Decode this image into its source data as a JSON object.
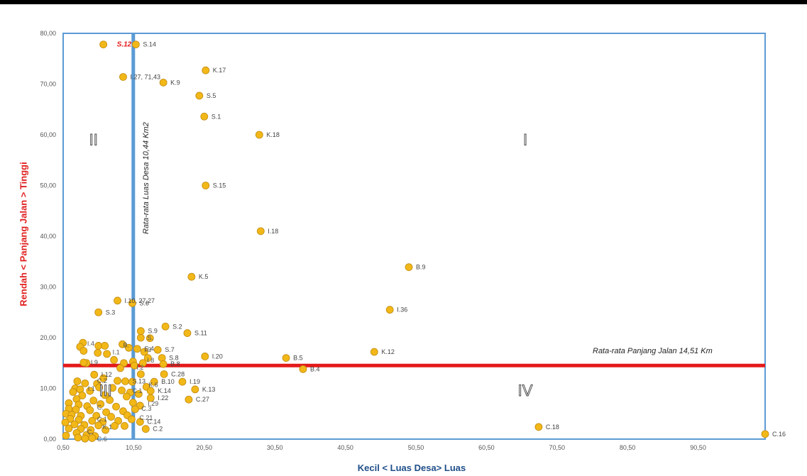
{
  "chart_data": {
    "type": "scatter",
    "xlabel": "Kecil < Luas Desa> Luas",
    "ylabel": "Rendah < Panjang Jalan > Tinggi",
    "xlim": [
      0.5,
      100
    ],
    "ylim": [
      0,
      80
    ],
    "x_ticks": [
      "0,50",
      "10,50",
      "20,50",
      "30,50",
      "40,50",
      "50,50",
      "60,50",
      "70,50",
      "80,50",
      "90,50"
    ],
    "y_ticks": [
      "0,00",
      "10,00",
      "20,00",
      "30,00",
      "40,00",
      "50,00",
      "60,00",
      "70,00",
      "80,00"
    ],
    "grid": false,
    "mean_x": 10.44,
    "mean_y": 14.51,
    "mean_x_label": "Rata-rata Luas Desa 10,44 Km2",
    "mean_y_label": "Rata-rata Panjang Jalan 14,51 Km",
    "quadrant_labels": [
      {
        "label": "I",
        "x": 66,
        "y": 58
      },
      {
        "label": "II",
        "x": 4.8,
        "y": 58
      },
      {
        "label": "III",
        "x": 6.5,
        "y": 8.5
      },
      {
        "label": "IV",
        "x": 66,
        "y": 8.5
      }
    ],
    "colors": {
      "point": "#f2b818",
      "point_stroke": "#c08a10",
      "mean_x_line": "#5b9bd5",
      "mean_y_line": "#e41a1a",
      "frame": "#5b9bd5",
      "highlight_label": "#e41a1a"
    },
    "labeled_points": [
      {
        "label": "S.12",
        "x": 6.2,
        "y": 77.8,
        "highlight": true
      },
      {
        "label": "S.14",
        "x": 10.8,
        "y": 77.8
      },
      {
        "label": "I.27, 71,43",
        "x": 9.0,
        "y": 71.4
      },
      {
        "label": "K.9",
        "x": 14.7,
        "y": 70.3
      },
      {
        "label": "K.17",
        "x": 20.7,
        "y": 72.7
      },
      {
        "label": "S.5",
        "x": 19.8,
        "y": 67.7
      },
      {
        "label": "S.1",
        "x": 20.5,
        "y": 63.6
      },
      {
        "label": "K.18",
        "x": 28.3,
        "y": 60.0
      },
      {
        "label": "S.15",
        "x": 20.7,
        "y": 50.0
      },
      {
        "label": "I.18",
        "x": 28.5,
        "y": 41.0
      },
      {
        "label": "K.5",
        "x": 18.7,
        "y": 32.0
      },
      {
        "label": "B.9",
        "x": 49.5,
        "y": 33.9
      },
      {
        "label": "I.36",
        "x": 46.8,
        "y": 25.5
      },
      {
        "label": "S.3",
        "x": 5.5,
        "y": 25.0
      },
      {
        "label": "I.10, 27,27",
        "x": 8.2,
        "y": 27.3
      },
      {
        "label": "S.6",
        "x": 10.3,
        "y": 26.8
      },
      {
        "label": "S.2",
        "x": 15.0,
        "y": 22.2
      },
      {
        "label": "S.11",
        "x": 18.1,
        "y": 20.9
      },
      {
        "label": "S.9",
        "x": 11.5,
        "y": 21.3
      },
      {
        "label": "K.12",
        "x": 44.6,
        "y": 17.2
      },
      {
        "label": "I.20",
        "x": 20.6,
        "y": 16.3
      },
      {
        "label": "B.5",
        "x": 32.1,
        "y": 16.0
      },
      {
        "label": "B.4",
        "x": 34.5,
        "y": 13.8
      },
      {
        "label": "S.7",
        "x": 13.9,
        "y": 17.6
      },
      {
        "label": "S.8",
        "x": 14.5,
        "y": 16.0
      },
      {
        "label": "B.8",
        "x": 14.7,
        "y": 14.8
      },
      {
        "label": "C.28",
        "x": 14.8,
        "y": 12.8
      },
      {
        "label": "I.12",
        "x": 4.9,
        "y": 12.7
      },
      {
        "label": "B.10",
        "x": 13.4,
        "y": 11.3
      },
      {
        "label": "I.19",
        "x": 17.4,
        "y": 11.3
      },
      {
        "label": "K.13",
        "x": 19.2,
        "y": 9.8
      },
      {
        "label": "K.14",
        "x": 12.9,
        "y": 9.5
      },
      {
        "label": "I.22",
        "x": 12.9,
        "y": 8.1
      },
      {
        "label": "C.27",
        "x": 18.3,
        "y": 7.8
      },
      {
        "label": "C.2",
        "x": 12.2,
        "y": 2.0
      },
      {
        "label": "C.14",
        "x": 11.4,
        "y": 3.4
      },
      {
        "label": "C.18",
        "x": 67.9,
        "y": 2.4
      },
      {
        "label": "C.16",
        "x": 100.0,
        "y": 1.0
      },
      {
        "label": "I.9",
        "x": 3.4,
        "y": 15.1
      },
      {
        "label": "S.4",
        "x": 11.0,
        "y": 17.8
      },
      {
        "label": "S.13",
        "x": 9.3,
        "y": 11.4
      }
    ],
    "unlabeled_points": [
      {
        "x": 3.3,
        "y": 19.0
      },
      {
        "x": 5.5,
        "y": 18.4
      },
      {
        "x": 2.9,
        "y": 18.2
      },
      {
        "x": 6.4,
        "y": 18.4
      },
      {
        "x": 8.9,
        "y": 18.7
      },
      {
        "x": 9.8,
        "y": 18.0
      },
      {
        "x": 11.5,
        "y": 20.0
      },
      {
        "x": 12.8,
        "y": 19.9
      },
      {
        "x": 3.4,
        "y": 17.4
      },
      {
        "x": 5.4,
        "y": 17.0
      },
      {
        "x": 6.7,
        "y": 16.8
      },
      {
        "x": 12.0,
        "y": 17.2
      },
      {
        "x": 12.5,
        "y": 16.0
      },
      {
        "x": 7.7,
        "y": 15.6
      },
      {
        "x": 9.1,
        "y": 15.0
      },
      {
        "x": 10.4,
        "y": 15.3
      },
      {
        "x": 11.8,
        "y": 15.0
      },
      {
        "x": 3.8,
        "y": 15.0
      },
      {
        "x": 8.6,
        "y": 14.0
      },
      {
        "x": 10.6,
        "y": 14.5
      },
      {
        "x": 11.5,
        "y": 12.8
      },
      {
        "x": 6.2,
        "y": 12.0
      },
      {
        "x": 8.2,
        "y": 11.5
      },
      {
        "x": 10.3,
        "y": 11.3
      },
      {
        "x": 2.5,
        "y": 11.4
      },
      {
        "x": 3.6,
        "y": 11.0
      },
      {
        "x": 5.3,
        "y": 10.9
      },
      {
        "x": 2.2,
        "y": 10.0
      },
      {
        "x": 2.9,
        "y": 9.8
      },
      {
        "x": 4.3,
        "y": 9.5
      },
      {
        "x": 5.6,
        "y": 10.2
      },
      {
        "x": 7.5,
        "y": 10.1
      },
      {
        "x": 8.8,
        "y": 9.6
      },
      {
        "x": 10.0,
        "y": 9.2
      },
      {
        "x": 12.3,
        "y": 10.3
      },
      {
        "x": 1.9,
        "y": 9.3
      },
      {
        "x": 3.2,
        "y": 8.6
      },
      {
        "x": 6.4,
        "y": 8.7
      },
      {
        "x": 9.5,
        "y": 8.4
      },
      {
        "x": 11.2,
        "y": 8.9
      },
      {
        "x": 2.4,
        "y": 7.9
      },
      {
        "x": 4.8,
        "y": 7.6
      },
      {
        "x": 7.1,
        "y": 7.7
      },
      {
        "x": 10.4,
        "y": 7.2
      },
      {
        "x": 1.3,
        "y": 7.1
      },
      {
        "x": 2.7,
        "y": 6.8
      },
      {
        "x": 3.9,
        "y": 6.5
      },
      {
        "x": 5.8,
        "y": 6.9
      },
      {
        "x": 8.0,
        "y": 6.4
      },
      {
        "x": 11.4,
        "y": 6.6
      },
      {
        "x": 1.3,
        "y": 6.0
      },
      {
        "x": 2.3,
        "y": 5.8
      },
      {
        "x": 4.3,
        "y": 5.7
      },
      {
        "x": 6.6,
        "y": 5.3
      },
      {
        "x": 9.0,
        "y": 5.5
      },
      {
        "x": 10.7,
        "y": 5.9
      },
      {
        "x": 0.9,
        "y": 5.0
      },
      {
        "x": 1.7,
        "y": 4.8
      },
      {
        "x": 3.0,
        "y": 4.6
      },
      {
        "x": 5.2,
        "y": 4.6
      },
      {
        "x": 7.3,
        "y": 4.4
      },
      {
        "x": 9.6,
        "y": 4.7
      },
      {
        "x": 1.5,
        "y": 4.0
      },
      {
        "x": 2.7,
        "y": 3.8
      },
      {
        "x": 4.6,
        "y": 3.6
      },
      {
        "x": 6.1,
        "y": 3.4
      },
      {
        "x": 8.3,
        "y": 3.6
      },
      {
        "x": 10.2,
        "y": 3.9
      },
      {
        "x": 0.8,
        "y": 3.3
      },
      {
        "x": 2.1,
        "y": 2.9
      },
      {
        "x": 3.5,
        "y": 2.8
      },
      {
        "x": 5.5,
        "y": 2.7
      },
      {
        "x": 7.8,
        "y": 2.6
      },
      {
        "x": 9.2,
        "y": 2.6
      },
      {
        "x": 1.3,
        "y": 2.1
      },
      {
        "x": 3.0,
        "y": 2.0
      },
      {
        "x": 4.4,
        "y": 1.8
      },
      {
        "x": 6.5,
        "y": 1.8
      },
      {
        "x": 2.4,
        "y": 1.2
      },
      {
        "x": 3.8,
        "y": 0.8
      },
      {
        "x": 5.0,
        "y": 0.6
      },
      {
        "x": 0.9,
        "y": 0.7
      },
      {
        "x": 2.6,
        "y": 0.3
      },
      {
        "x": 3.6,
        "y": 0.1
      },
      {
        "x": 4.6,
        "y": 0.2
      }
    ],
    "cluster_labels": [
      {
        "label": "I.4",
        "x": 3.6,
        "y": 18.8
      },
      {
        "label": "B.",
        "x": 8.7,
        "y": 18.5
      },
      {
        "label": "S.",
        "x": 12.1,
        "y": 19.9
      },
      {
        "label": "I.3",
        "x": 11.7,
        "y": 17.6
      },
      {
        "label": "I.1",
        "x": 7.2,
        "y": 17.1
      },
      {
        "label": "I.8",
        "x": 12.1,
        "y": 15.5
      },
      {
        "label": "I.2",
        "x": 10.6,
        "y": 14.1
      },
      {
        "label": "C.2",
        "x": 5.0,
        "y": 11.5
      },
      {
        "label": "K.6",
        "x": 12.3,
        "y": 10.7
      },
      {
        "label": "I.1",
        "x": 3.7,
        "y": 9.9
      },
      {
        "label": "C.1",
        "x": 10.0,
        "y": 9.5
      },
      {
        "label": "I.29",
        "x": 12.2,
        "y": 7.0
      },
      {
        "label": "C.",
        "x": 5.0,
        "y": 6.2
      },
      {
        "label": "C.3",
        "x": 11.3,
        "y": 6.0
      },
      {
        "label": "C.1",
        "x": 5.0,
        "y": 3.9
      },
      {
        "label": "C.21",
        "x": 11.0,
        "y": 4.2
      },
      {
        "label": "K.1",
        "x": 5.8,
        "y": 2.4
      },
      {
        "label": "C.",
        "x": 3.6,
        "y": 1.4
      },
      {
        "label": "C.6",
        "x": 5.0,
        "y": 0.0
      }
    ]
  }
}
